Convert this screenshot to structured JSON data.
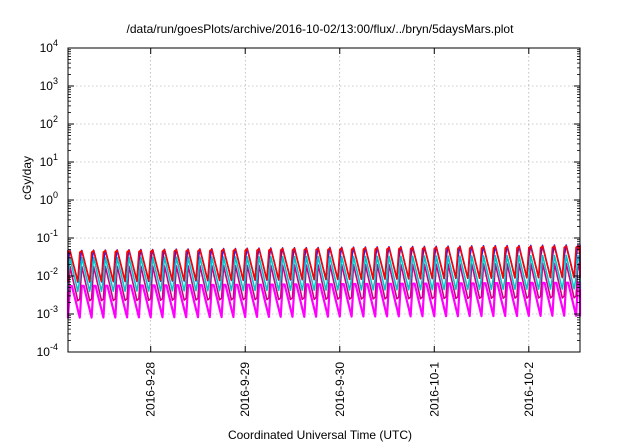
{
  "chart_data": {
    "type": "line",
    "title": "/data/run/goesPlots/archive/2016-10-02/13:00/flux/../bryn/5daysMars.plot",
    "xlabel": "Coordinated Universal Time (UTC)",
    "ylabel": "cGy/day",
    "yscale": "log",
    "ylim": [
      0.0001,
      10000
    ],
    "y_ticks": [
      {
        "base": "10",
        "exp": "-4"
      },
      {
        "base": "10",
        "exp": "-3"
      },
      {
        "base": "10",
        "exp": "-2"
      },
      {
        "base": "10",
        "exp": "-1"
      },
      {
        "base": "10",
        "exp": "0"
      },
      {
        "base": "10",
        "exp": "1"
      },
      {
        "base": "10",
        "exp": "2"
      },
      {
        "base": "10",
        "exp": "3"
      },
      {
        "base": "10",
        "exp": "4"
      }
    ],
    "xlim": [
      "2016-09-27T03:00",
      "2016-10-02T13:00"
    ],
    "x_ticks": [
      "2016-9-28",
      "2016-9-29",
      "2016-9-30",
      "2016-10-1",
      "2016-10-2"
    ],
    "grid": true,
    "oscillation_period_hours": 3,
    "series": [
      {
        "color": "#ff00ff",
        "peak_start": 0.008,
        "peak_end": 0.01,
        "trough_start": 0.0008,
        "trough_end": 0.0009
      },
      {
        "color": "#cc0080",
        "peak_start": 0.018,
        "peak_end": 0.022,
        "trough_start": 0.0015,
        "trough_end": 0.0018
      },
      {
        "color": "#00c8c8",
        "peak_start": 0.035,
        "peak_end": 0.04,
        "trough_start": 0.003,
        "trough_end": 0.0035
      },
      {
        "color": "#2020ff",
        "peak_start": 0.06,
        "peak_end": 0.085,
        "trough_start": 0.006,
        "trough_end": 0.008
      },
      {
        "color": "#ff0000",
        "peak_start": 0.065,
        "peak_end": 0.09,
        "trough_start": 0.007,
        "trough_end": 0.009
      }
    ]
  }
}
